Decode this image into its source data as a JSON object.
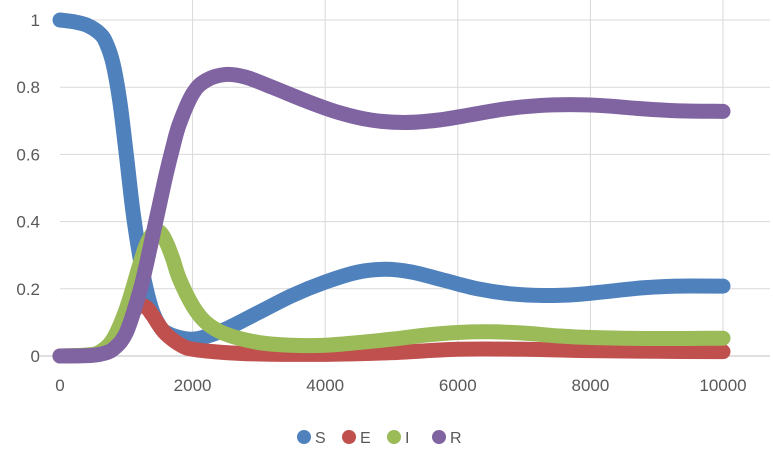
{
  "chart_data": {
    "type": "line",
    "title": "",
    "xlabel": "",
    "ylabel": "",
    "xlim": [
      0,
      10000
    ],
    "ylim": [
      0,
      1
    ],
    "x_ticks": [
      0,
      2000,
      4000,
      6000,
      8000,
      10000
    ],
    "y_ticks": [
      0,
      0.2,
      0.4,
      0.6,
      0.8,
      1
    ],
    "x_tick_labels": [
      "0",
      "2000",
      "4000",
      "6000",
      "8000",
      "10000"
    ],
    "y_tick_labels": [
      "0",
      "0.2",
      "0.4",
      "0.6",
      "0.8",
      "1"
    ],
    "grid": true,
    "legend_position": "bottom",
    "series": [
      {
        "name": "S",
        "color": "#4F81BD",
        "points": [
          [
            0,
            1
          ],
          [
            200,
            0.995
          ],
          [
            400,
            0.985
          ],
          [
            600,
            0.96
          ],
          [
            700,
            0.93
          ],
          [
            800,
            0.87
          ],
          [
            900,
            0.76
          ],
          [
            1000,
            0.6
          ],
          [
            1100,
            0.43
          ],
          [
            1200,
            0.3
          ],
          [
            1300,
            0.2
          ],
          [
            1400,
            0.13
          ],
          [
            1500,
            0.09
          ],
          [
            1600,
            0.07
          ],
          [
            1800,
            0.055
          ],
          [
            2000,
            0.05
          ],
          [
            2200,
            0.058
          ],
          [
            2500,
            0.08
          ],
          [
            3000,
            0.13
          ],
          [
            3500,
            0.18
          ],
          [
            4000,
            0.22
          ],
          [
            4500,
            0.25
          ],
          [
            4900,
            0.258
          ],
          [
            5300,
            0.25
          ],
          [
            5800,
            0.225
          ],
          [
            6300,
            0.2
          ],
          [
            6800,
            0.185
          ],
          [
            7300,
            0.18
          ],
          [
            7800,
            0.183
          ],
          [
            8300,
            0.193
          ],
          [
            8800,
            0.203
          ],
          [
            9300,
            0.208
          ],
          [
            10000,
            0.208
          ]
        ]
      },
      {
        "name": "E",
        "color": "#C0504D",
        "points": [
          [
            0,
            0
          ],
          [
            400,
            0.002
          ],
          [
            600,
            0.01
          ],
          [
            800,
            0.04
          ],
          [
            1000,
            0.1
          ],
          [
            1100,
            0.13
          ],
          [
            1200,
            0.15
          ],
          [
            1300,
            0.145
          ],
          [
            1400,
            0.12
          ],
          [
            1500,
            0.09
          ],
          [
            1600,
            0.065
          ],
          [
            1800,
            0.035
          ],
          [
            2000,
            0.02
          ],
          [
            2500,
            0.01
          ],
          [
            3000,
            0.006
          ],
          [
            4000,
            0.005
          ],
          [
            5000,
            0.01
          ],
          [
            6000,
            0.02
          ],
          [
            7000,
            0.02
          ],
          [
            8000,
            0.016
          ],
          [
            9000,
            0.014
          ],
          [
            10000,
            0.013
          ]
        ]
      },
      {
        "name": "I",
        "color": "#9BBB59",
        "points": [
          [
            0,
            0
          ],
          [
            400,
            0.003
          ],
          [
            600,
            0.012
          ],
          [
            800,
            0.05
          ],
          [
            1000,
            0.14
          ],
          [
            1200,
            0.27
          ],
          [
            1300,
            0.33
          ],
          [
            1400,
            0.365
          ],
          [
            1500,
            0.37
          ],
          [
            1600,
            0.34
          ],
          [
            1700,
            0.29
          ],
          [
            1800,
            0.23
          ],
          [
            2000,
            0.15
          ],
          [
            2200,
            0.1
          ],
          [
            2500,
            0.065
          ],
          [
            3000,
            0.04
          ],
          [
            3500,
            0.032
          ],
          [
            4000,
            0.032
          ],
          [
            4500,
            0.04
          ],
          [
            5000,
            0.05
          ],
          [
            5500,
            0.062
          ],
          [
            6000,
            0.07
          ],
          [
            6500,
            0.072
          ],
          [
            7000,
            0.068
          ],
          [
            7500,
            0.06
          ],
          [
            8000,
            0.055
          ],
          [
            9000,
            0.052
          ],
          [
            10000,
            0.053
          ]
        ]
      },
      {
        "name": "R",
        "color": "#8064A2",
        "points": [
          [
            0,
            0
          ],
          [
            400,
            0.001
          ],
          [
            600,
            0.005
          ],
          [
            800,
            0.02
          ],
          [
            1000,
            0.07
          ],
          [
            1200,
            0.19
          ],
          [
            1300,
            0.27
          ],
          [
            1400,
            0.36
          ],
          [
            1500,
            0.45
          ],
          [
            1600,
            0.54
          ],
          [
            1700,
            0.62
          ],
          [
            1800,
            0.69
          ],
          [
            2000,
            0.78
          ],
          [
            2200,
            0.82
          ],
          [
            2500,
            0.838
          ],
          [
            2800,
            0.83
          ],
          [
            3200,
            0.8
          ],
          [
            3700,
            0.76
          ],
          [
            4200,
            0.725
          ],
          [
            4700,
            0.702
          ],
          [
            5200,
            0.695
          ],
          [
            5700,
            0.702
          ],
          [
            6200,
            0.718
          ],
          [
            6700,
            0.735
          ],
          [
            7200,
            0.745
          ],
          [
            7700,
            0.748
          ],
          [
            8200,
            0.745
          ],
          [
            8700,
            0.737
          ],
          [
            9300,
            0.73
          ],
          [
            10000,
            0.728
          ]
        ]
      }
    ]
  }
}
